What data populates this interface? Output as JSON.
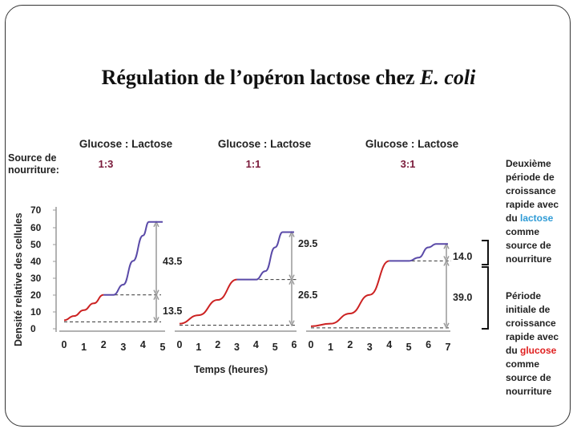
{
  "page": {
    "title_main": "Régulation de l’opéron lactose chez ",
    "title_italic": "E. coli"
  },
  "left_labels": {
    "source_line1": "Source de",
    "source_line2": "nourriture:",
    "y_axis_label": "Densité relative des cellules",
    "x_axis_label": "Temps (heures)"
  },
  "right_notes": {
    "second_phase": [
      "Deuxième",
      "période de",
      "croissance",
      "rapide avec",
      "du ",
      "lactose",
      "comme",
      "source de",
      "nourriture"
    ],
    "first_phase": [
      "Période",
      "initiale de",
      "croissance",
      "rapide avec",
      "du ",
      "glucose",
      "comme",
      "source de",
      "nourriture"
    ],
    "lactose_color": "#2e9bd6",
    "glucose_color": "#e02020"
  },
  "colors": {
    "glucose_curve": "#cc2222",
    "lactose_curve": "#5a4aa8",
    "ratio_text": "#7a1a3a"
  },
  "chart_data": [
    {
      "type": "line",
      "header": "Glucose : Lactose",
      "ratio": "1:3",
      "x_ticks": [
        "0",
        "1",
        "2",
        "3",
        "4",
        "5"
      ],
      "xlim": [
        0,
        5
      ],
      "y_ticks": [
        "0",
        "10",
        "20",
        "30",
        "40",
        "50",
        "60",
        "70"
      ],
      "ylim": [
        0,
        70
      ],
      "series": [
        {
          "part": "glucose",
          "x": [
            0,
            0.5,
            1,
            1.5,
            2
          ],
          "y": [
            5,
            7.5,
            11,
            15,
            20
          ]
        },
        {
          "part": "lactose",
          "x": [
            2,
            2.5,
            3,
            3.5,
            4,
            4.3,
            5
          ],
          "y": [
            20,
            20,
            26,
            40,
            55,
            63,
            63
          ]
        }
      ],
      "plateaus": [
        20,
        63
      ],
      "baseline": 5,
      "annotations": [
        "43.5",
        "13.5"
      ]
    },
    {
      "type": "line",
      "header": "Glucose : Lactose",
      "ratio": "1:1",
      "x_ticks": [
        "0",
        "1",
        "2",
        "3",
        "4",
        "5",
        "6"
      ],
      "xlim": [
        0,
        6
      ],
      "y_ticks": [],
      "ylim": [
        0,
        70
      ],
      "series": [
        {
          "part": "glucose",
          "x": [
            0,
            1,
            2,
            3
          ],
          "y": [
            3,
            8,
            17,
            29
          ]
        },
        {
          "part": "lactose",
          "x": [
            3,
            4,
            4.5,
            5,
            5.4,
            6
          ],
          "y": [
            29,
            29,
            34,
            48,
            57,
            57
          ]
        }
      ],
      "plateaus": [
        29,
        57
      ],
      "baseline": 3,
      "annotations": [
        "29.5",
        "26.5"
      ]
    },
    {
      "type": "line",
      "header": "Glucose : Lactose",
      "ratio": "3:1",
      "x_ticks": [
        "0",
        "1",
        "2",
        "3",
        "4",
        "5",
        "6",
        "7"
      ],
      "xlim": [
        0,
        7
      ],
      "y_ticks": [],
      "ylim": [
        0,
        70
      ],
      "series": [
        {
          "part": "glucose",
          "x": [
            0,
            1,
            2,
            3,
            4
          ],
          "y": [
            1.5,
            3,
            9,
            20,
            40
          ]
        },
        {
          "part": "lactose",
          "x": [
            4,
            5,
            5.5,
            6,
            6.4,
            7
          ],
          "y": [
            40,
            40,
            42,
            48,
            50,
            50
          ]
        }
      ],
      "plateaus": [
        40,
        50
      ],
      "baseline": 1.5,
      "annotations": [
        "14.0",
        "39.0"
      ]
    }
  ]
}
